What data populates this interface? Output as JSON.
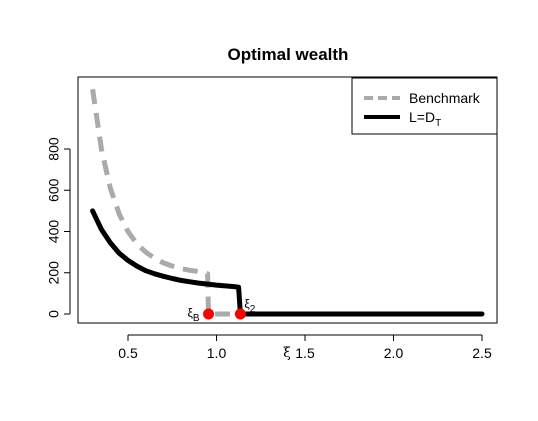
{
  "chart_data": {
    "type": "line",
    "title": "Optimal wealth",
    "xlabel": "ξ",
    "ylabel": "",
    "xlim": [
      0.3,
      2.5
    ],
    "ylim": [
      0,
      1100
    ],
    "x_ticks": [
      0.5,
      1.0,
      1.5,
      2.0,
      2.5
    ],
    "x_tick_labels": [
      "0.5",
      "1.0",
      "1.5",
      "2.0",
      "2.5"
    ],
    "y_ticks": [
      0,
      200,
      400,
      600,
      800
    ],
    "y_tick_labels": [
      "0",
      "200",
      "400",
      "600",
      "800"
    ],
    "grid": false,
    "legend_position": "top-right",
    "series": [
      {
        "name": "Benchmark",
        "color": "#aaaaaa",
        "style": "dashed",
        "x": [
          0.3,
          0.35,
          0.4,
          0.45,
          0.5,
          0.55,
          0.6,
          0.65,
          0.7,
          0.75,
          0.8,
          0.85,
          0.9,
          0.95,
          0.955,
          1.0,
          1.13,
          2.5
        ],
        "y": [
          1090,
          800,
          610,
          485,
          400,
          340,
          300,
          270,
          248,
          232,
          220,
          212,
          206,
          195,
          0,
          0,
          0,
          0
        ]
      },
      {
        "name": "L=D",
        "name_subscript": "T",
        "color": "#000000",
        "style": "solid",
        "x": [
          0.3,
          0.35,
          0.4,
          0.45,
          0.5,
          0.55,
          0.6,
          0.65,
          0.7,
          0.75,
          0.8,
          0.85,
          0.9,
          0.95,
          1.0,
          1.05,
          1.1,
          1.125,
          1.135,
          1.5,
          2.0,
          2.5
        ],
        "y": [
          500,
          410,
          345,
          295,
          260,
          232,
          210,
          195,
          183,
          172,
          163,
          156,
          150,
          145,
          140,
          136,
          133,
          130,
          0,
          0,
          0,
          0
        ]
      }
    ],
    "points": [
      {
        "label": "ξ",
        "label_subscript": "B",
        "x": 0.955,
        "y": 0,
        "color": "#ff0000"
      },
      {
        "label": "ξ",
        "label_subscript": "2",
        "x": 1.135,
        "y": 0,
        "color": "#ff0000"
      }
    ]
  }
}
